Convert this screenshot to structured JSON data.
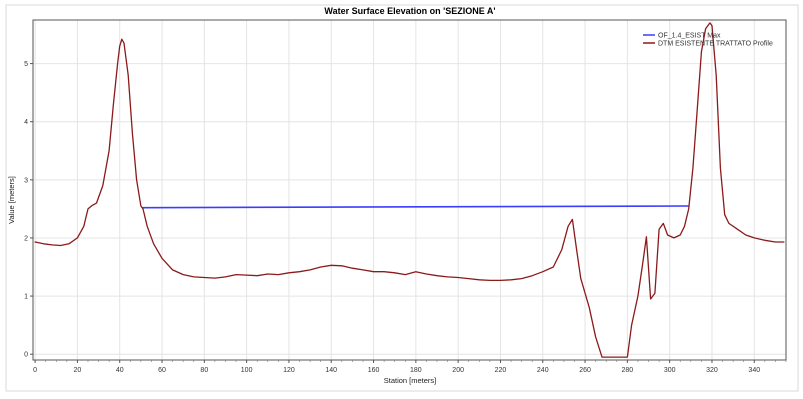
{
  "chart_data": {
    "type": "line",
    "title": "Water Surface Elevation on 'SEZIONE A'",
    "xlabel": "Station [meters]",
    "ylabel": "Value [meters]",
    "xlim": [
      -1,
      355
    ],
    "ylim": [
      -0.1,
      5.75
    ],
    "xticks": [
      0,
      20,
      40,
      60,
      80,
      100,
      120,
      140,
      160,
      180,
      200,
      220,
      240,
      260,
      280,
      300,
      320,
      340
    ],
    "yticks": [
      0,
      1,
      2,
      3,
      4,
      5
    ],
    "grid": true,
    "legend_position": "top-right",
    "series": [
      {
        "name": "OF_1.4_ESIST Max",
        "color": "#3c3cff",
        "points": [
          [
            51,
            2.52
          ],
          [
            309,
            2.55
          ]
        ]
      },
      {
        "name": "DTM ESISTENTE TRATTATO Profile",
        "color": "#8b1a1a",
        "points": [
          [
            0,
            1.93
          ],
          [
            4,
            1.9
          ],
          [
            8,
            1.88
          ],
          [
            12,
            1.87
          ],
          [
            16,
            1.9
          ],
          [
            20,
            2.0
          ],
          [
            23,
            2.2
          ],
          [
            25,
            2.5
          ],
          [
            27,
            2.56
          ],
          [
            29,
            2.6
          ],
          [
            32,
            2.9
          ],
          [
            35,
            3.5
          ],
          [
            37,
            4.3
          ],
          [
            39,
            5.0
          ],
          [
            40,
            5.3
          ],
          [
            41,
            5.42
          ],
          [
            42,
            5.35
          ],
          [
            44,
            4.8
          ],
          [
            46,
            3.8
          ],
          [
            48,
            3.0
          ],
          [
            50,
            2.55
          ],
          [
            51,
            2.5
          ],
          [
            53,
            2.2
          ],
          [
            56,
            1.9
          ],
          [
            60,
            1.65
          ],
          [
            65,
            1.45
          ],
          [
            70,
            1.37
          ],
          [
            75,
            1.33
          ],
          [
            80,
            1.32
          ],
          [
            85,
            1.31
          ],
          [
            90,
            1.33
          ],
          [
            95,
            1.37
          ],
          [
            100,
            1.36
          ],
          [
            105,
            1.35
          ],
          [
            110,
            1.38
          ],
          [
            115,
            1.37
          ],
          [
            120,
            1.4
          ],
          [
            125,
            1.42
          ],
          [
            130,
            1.45
          ],
          [
            135,
            1.5
          ],
          [
            140,
            1.53
          ],
          [
            145,
            1.52
          ],
          [
            150,
            1.48
          ],
          [
            155,
            1.45
          ],
          [
            160,
            1.42
          ],
          [
            165,
            1.42
          ],
          [
            170,
            1.4
          ],
          [
            175,
            1.37
          ],
          [
            180,
            1.42
          ],
          [
            185,
            1.38
          ],
          [
            190,
            1.35
          ],
          [
            195,
            1.33
          ],
          [
            200,
            1.32
          ],
          [
            205,
            1.3
          ],
          [
            210,
            1.28
          ],
          [
            215,
            1.27
          ],
          [
            220,
            1.27
          ],
          [
            225,
            1.28
          ],
          [
            230,
            1.3
          ],
          [
            235,
            1.35
          ],
          [
            240,
            1.42
          ],
          [
            245,
            1.5
          ],
          [
            249,
            1.8
          ],
          [
            252,
            2.2
          ],
          [
            254,
            2.32
          ],
          [
            256,
            1.8
          ],
          [
            258,
            1.3
          ],
          [
            262,
            0.8
          ],
          [
            265,
            0.3
          ],
          [
            268,
            -0.05
          ],
          [
            272,
            -0.05
          ],
          [
            276,
            -0.05
          ],
          [
            280,
            -0.05
          ],
          [
            282,
            0.5
          ],
          [
            285,
            1.0
          ],
          [
            287,
            1.5
          ],
          [
            289,
            2.02
          ],
          [
            291,
            0.95
          ],
          [
            293,
            1.05
          ],
          [
            295,
            2.15
          ],
          [
            297,
            2.25
          ],
          [
            299,
            2.05
          ],
          [
            302,
            2.0
          ],
          [
            305,
            2.05
          ],
          [
            307,
            2.2
          ],
          [
            309,
            2.5
          ],
          [
            311,
            3.2
          ],
          [
            313,
            4.2
          ],
          [
            315,
            5.2
          ],
          [
            317,
            5.6
          ],
          [
            319,
            5.7
          ],
          [
            320,
            5.65
          ],
          [
            322,
            4.8
          ],
          [
            324,
            3.2
          ],
          [
            326,
            2.4
          ],
          [
            328,
            2.25
          ],
          [
            332,
            2.15
          ],
          [
            336,
            2.05
          ],
          [
            340,
            2.0
          ],
          [
            345,
            1.96
          ],
          [
            350,
            1.93
          ],
          [
            354,
            1.93
          ]
        ]
      }
    ]
  }
}
